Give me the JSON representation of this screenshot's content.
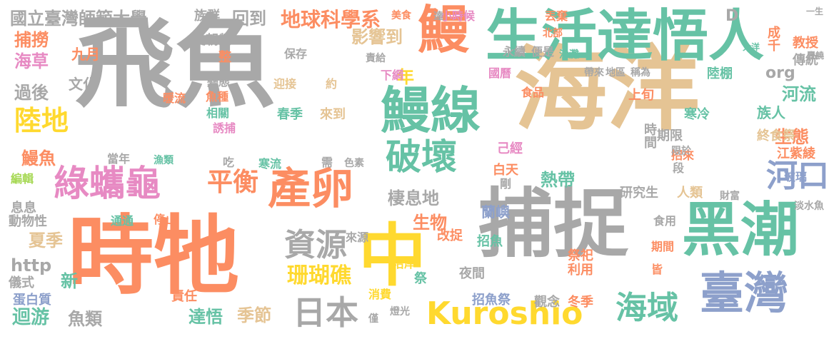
{
  "palette": {
    "gray": "#a8a8a8",
    "teal": "#66c2a5",
    "orange": "#fc8d62",
    "blue": "#8da0cb",
    "pink": "#e78ac3",
    "lime": "#a6d854",
    "yellow": "#ffd92f",
    "tan": "#e5c494"
  },
  "words": [
    {
      "t": "飛魚",
      "c": "gray"
    },
    {
      "t": "海洋",
      "c": "tan"
    },
    {
      "t": "時牠",
      "c": "orange"
    },
    {
      "t": "捕捉",
      "c": "gray"
    },
    {
      "t": "中",
      "c": "yellow"
    },
    {
      "t": "生活達悟人",
      "c": "teal"
    },
    {
      "t": "鰻",
      "c": "orange"
    },
    {
      "t": "黑潮",
      "c": "teal"
    },
    {
      "t": "鰻線",
      "c": "teal"
    },
    {
      "t": "臺灣",
      "c": "blue"
    },
    {
      "t": "產卵",
      "c": "orange"
    },
    {
      "t": "綠蠵龜",
      "c": "pink"
    },
    {
      "t": "破壞",
      "c": "teal"
    },
    {
      "t": "Kuroshio",
      "c": "yellow"
    },
    {
      "t": "日本",
      "c": "gray"
    },
    {
      "t": "海域",
      "c": "teal"
    },
    {
      "t": "資源",
      "c": "gray"
    },
    {
      "t": "陸地",
      "c": "yellow"
    },
    {
      "t": "平衡",
      "c": "orange"
    },
    {
      "t": "河口",
      "c": "blue"
    },
    {
      "t": "珊瑚礁",
      "c": "yellow"
    },
    {
      "t": "地球科學系",
      "c": "orange"
    },
    {
      "t": "國立臺灣師範大學",
      "c": "gray"
    },
    {
      "t": "族群",
      "c": "gray"
    },
    {
      "t": "回到",
      "c": "gray"
    },
    {
      "t": "捕撈",
      "c": "orange"
    },
    {
      "t": "海草",
      "c": "pink"
    },
    {
      "t": "九月",
      "c": "orange"
    },
    {
      "t": "過後",
      "c": "gray"
    },
    {
      "t": "文化",
      "c": "gray"
    },
    {
      "t": "鰻魚",
      "c": "orange"
    },
    {
      "t": "編輯",
      "c": "lime"
    },
    {
      "t": "息息",
      "c": "gray"
    },
    {
      "t": "動物性",
      "c": "gray"
    },
    {
      "t": "夏季",
      "c": "tan"
    },
    {
      "t": "http",
      "c": "gray"
    },
    {
      "t": "新",
      "c": "teal"
    },
    {
      "t": "儀式",
      "c": "gray"
    },
    {
      "t": "蛋白質",
      "c": "blue"
    },
    {
      "t": "迴游",
      "c": "teal"
    },
    {
      "t": "魚類",
      "c": "gray"
    },
    {
      "t": "達悟",
      "c": "teal"
    },
    {
      "t": "季節",
      "c": "tan"
    },
    {
      "t": "責任",
      "c": "orange"
    },
    {
      "t": "影響到",
      "c": "tan"
    },
    {
      "t": "年",
      "c": "yellow"
    },
    {
      "t": "棲息地",
      "c": "gray"
    },
    {
      "t": "生物",
      "c": "orange"
    },
    {
      "t": "蘭嶼",
      "c": "blue"
    },
    {
      "t": "招魚",
      "c": "teal"
    },
    {
      "t": "改捉",
      "c": "orange"
    },
    {
      "t": "夜間",
      "c": "gray"
    },
    {
      "t": "招魚祭",
      "c": "blue"
    },
    {
      "t": "觀念",
      "c": "gray"
    },
    {
      "t": "冬季",
      "c": "orange"
    },
    {
      "t": "河流",
      "c": "teal"
    },
    {
      "t": "生態",
      "c": "orange"
    },
    {
      "t": "江紫綾",
      "c": "orange"
    },
    {
      "t": "研究生",
      "c": "gray"
    },
    {
      "t": "人類",
      "c": "tan"
    },
    {
      "t": "熱帶",
      "c": "teal"
    },
    {
      "t": "白天",
      "c": "orange"
    },
    {
      "t": "己經",
      "c": "pink"
    },
    {
      "t": "教授",
      "c": "orange"
    },
    {
      "t": "傳統",
      "c": "gray"
    },
    {
      "t": "族人",
      "c": "teal"
    },
    {
      "t": "終食祭",
      "c": "tan"
    },
    {
      "t": "期限",
      "c": "gray"
    },
    {
      "t": "時間",
      "c": "gray"
    },
    {
      "t": "寒冷",
      "c": "teal"
    },
    {
      "t": "上旬",
      "c": "orange"
    },
    {
      "t": "org",
      "c": "gray"
    },
    {
      "t": "陸棚",
      "c": "teal"
    },
    {
      "t": "成千",
      "c": "orange"
    },
    {
      "t": "永續",
      "c": "gray"
    },
    {
      "t": "便是",
      "c": "gray"
    },
    {
      "t": "國曆",
      "c": "pink"
    },
    {
      "t": "食品",
      "c": "orange"
    },
    {
      "t": "帶來",
      "c": "gray"
    },
    {
      "t": "地區",
      "c": "gray"
    },
    {
      "t": "稱為",
      "c": "gray"
    },
    {
      "t": "丟棄",
      "c": "orange"
    },
    {
      "t": "小時候",
      "c": "pink"
    },
    {
      "t": "美食",
      "c": "orange"
    },
    {
      "t": "吳朝榮",
      "c": "gray"
    },
    {
      "t": "整",
      "c": "orange"
    },
    {
      "t": "保存",
      "c": "gray"
    },
    {
      "t": "變態",
      "c": "gray"
    },
    {
      "t": "魚種",
      "c": "orange"
    },
    {
      "t": "相關",
      "c": "teal"
    },
    {
      "t": "誘捕",
      "c": "pink"
    },
    {
      "t": "迎接",
      "c": "tan"
    },
    {
      "t": "約",
      "c": "tan"
    },
    {
      "t": "春季",
      "c": "teal"
    },
    {
      "t": "來到",
      "c": "tan"
    },
    {
      "t": "下網",
      "c": "pink"
    },
    {
      "t": "責給",
      "c": "gray"
    },
    {
      "t": "暖流",
      "c": "orange"
    },
    {
      "t": "當年",
      "c": "gray"
    },
    {
      "t": "漁類",
      "c": "teal"
    },
    {
      "t": "吃",
      "c": "gray"
    },
    {
      "t": "寒流",
      "c": "teal"
    },
    {
      "t": "需",
      "c": "gray"
    },
    {
      "t": "色素",
      "c": "gray"
    },
    {
      "t": "停止",
      "c": "orange"
    },
    {
      "t": "通通",
      "c": "teal"
    },
    {
      "t": "利用",
      "c": "orange"
    },
    {
      "t": "祭祀",
      "c": "orange"
    },
    {
      "t": "沿岸",
      "c": "yellow"
    },
    {
      "t": "祭",
      "c": "teal"
    },
    {
      "t": "來源",
      "c": "gray"
    },
    {
      "t": "消費",
      "c": "yellow"
    },
    {
      "t": "燈光",
      "c": "gray"
    },
    {
      "t": "僅",
      "c": "gray"
    },
    {
      "t": "食用",
      "c": "gray"
    },
    {
      "t": "期間",
      "c": "orange"
    },
    {
      "t": "皆",
      "c": "orange"
    },
    {
      "t": "招來",
      "c": "orange"
    },
    {
      "t": "剛",
      "c": "gray"
    },
    {
      "t": "段",
      "c": "gray"
    },
    {
      "t": "限於",
      "c": "gray"
    },
    {
      "t": "玻璃",
      "c": "blue"
    },
    {
      "t": "財富",
      "c": "gray"
    },
    {
      "t": "淡水魚",
      "c": "gray"
    },
    {
      "t": "D",
      "c": "gray"
    },
    {
      "t": "達",
      "c": "gray"
    },
    {
      "t": "北部",
      "c": "orange"
    },
    {
      "t": "沙灘",
      "c": "teal"
    },
    {
      "t": "一生",
      "c": "gray"
    },
    {
      "t": "大洋",
      "c": "teal"
    },
    {
      "t": "豐饒",
      "c": "gray"
    }
  ]
}
